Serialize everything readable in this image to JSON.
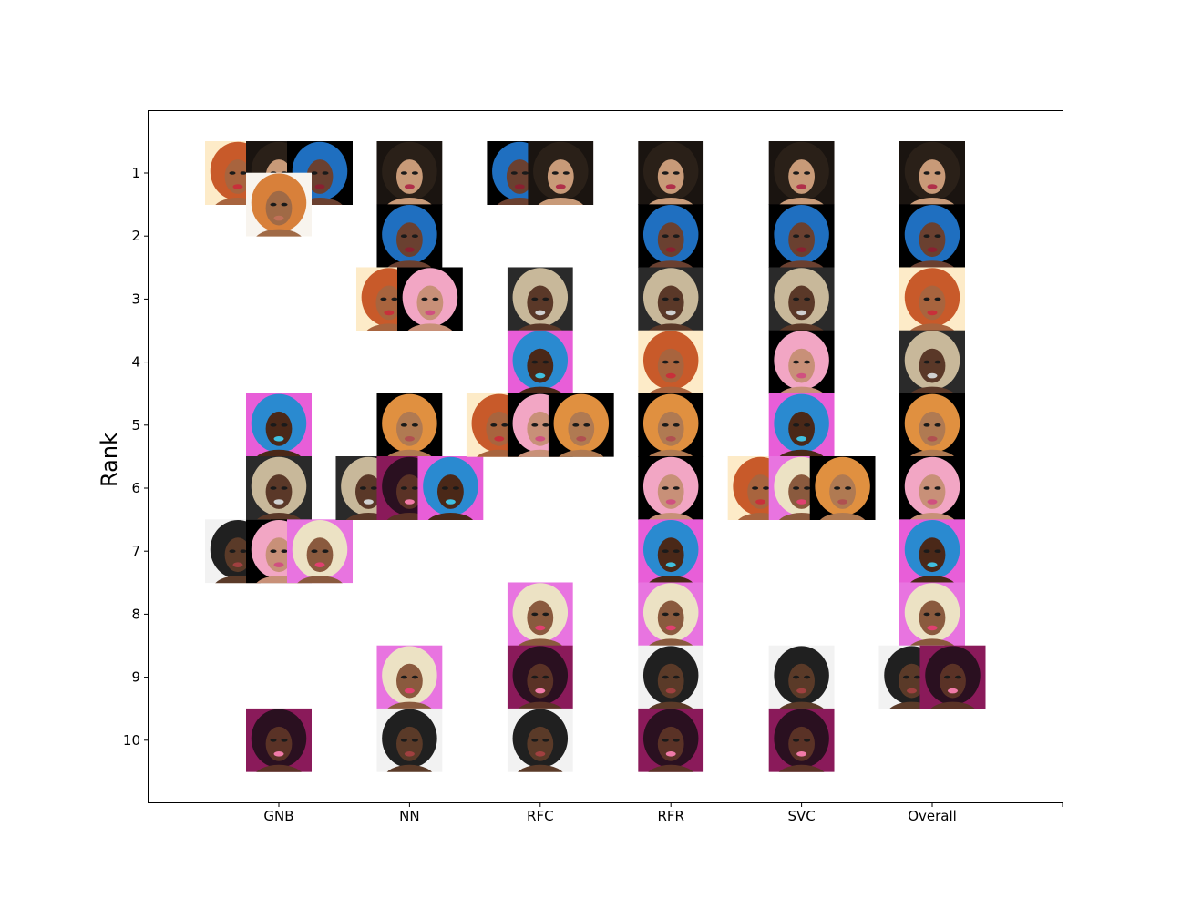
{
  "chart_data": {
    "type": "scatter",
    "marker": "portrait-thumbnails",
    "title": "",
    "xlabel": "",
    "ylabel": "Rank",
    "categories": [
      "GNB",
      "NN",
      "RFC",
      "RFR",
      "SVC",
      "Overall"
    ],
    "ylim": [
      11,
      0
    ],
    "y_ticks": [
      1,
      2,
      3,
      4,
      5,
      6,
      7,
      8,
      9,
      10
    ],
    "grid": false,
    "legend": "none",
    "portraits": {
      "A": {
        "bg": "#fdebc8",
        "hair": "#c85a2a",
        "skin": "#a8643e",
        "lip": "#c8303a"
      },
      "B": {
        "bg": "#1a1410",
        "hair": "#2a2018",
        "skin": "#c89a78",
        "lip": "#b0304a"
      },
      "C": {
        "bg": "#000000",
        "hair": "#1f6fc0",
        "skin": "#6a4030",
        "lip": "#8a2030"
      },
      "D": {
        "bg": "#f8f4ee",
        "hair": "#d8803a",
        "skin": "#a06a46",
        "lip": "#c07058"
      },
      "E": {
        "bg": "#000000",
        "hair": "#e09040",
        "skin": "#b07a52",
        "lip": "#b05050"
      },
      "F": {
        "bg": "#e85ed8",
        "hair": "#2a8ad0",
        "skin": "#4a2818",
        "lip": "#40c0e0"
      },
      "G": {
        "bg": "#2a2a2a",
        "hair": "#c8b89a",
        "skin": "#5a3828",
        "lip": "#d0d0d0"
      },
      "H": {
        "bg": "#000000",
        "hair": "#f2a6c4",
        "skin": "#c89078",
        "lip": "#d05080"
      },
      "I": {
        "bg": "#f2f2f2",
        "hair": "#202020",
        "skin": "#5a3a28",
        "lip": "#a04040"
      },
      "J": {
        "bg": "#e874e0",
        "hair": "#ece2c4",
        "skin": "#8a5a3e",
        "lip": "#e04070"
      },
      "K": {
        "bg": "#8a1a5a",
        "hair": "#2a1020",
        "skin": "#5a3226",
        "lip": "#f07aa8"
      }
    },
    "series": [
      {
        "column": "GNB",
        "points": [
          {
            "rank": 1,
            "p": "A"
          },
          {
            "rank": 1,
            "p": "B"
          },
          {
            "rank": 1,
            "p": "C"
          },
          {
            "rank": 1.5,
            "p": "D"
          },
          {
            "rank": 5,
            "p": "F"
          },
          {
            "rank": 6,
            "p": "G"
          },
          {
            "rank": 7,
            "p": "I"
          },
          {
            "rank": 7,
            "p": "H"
          },
          {
            "rank": 7,
            "p": "J"
          },
          {
            "rank": 10,
            "p": "K"
          }
        ]
      },
      {
        "column": "NN",
        "points": [
          {
            "rank": 1,
            "p": "B"
          },
          {
            "rank": 2,
            "p": "C"
          },
          {
            "rank": 3,
            "p": "A"
          },
          {
            "rank": 3,
            "p": "H"
          },
          {
            "rank": 5,
            "p": "E"
          },
          {
            "rank": 6,
            "p": "G"
          },
          {
            "rank": 6,
            "p": "K"
          },
          {
            "rank": 6,
            "p": "F"
          },
          {
            "rank": 9,
            "p": "J"
          },
          {
            "rank": 10,
            "p": "I"
          }
        ]
      },
      {
        "column": "RFC",
        "points": [
          {
            "rank": 1,
            "p": "C"
          },
          {
            "rank": 1,
            "p": "B"
          },
          {
            "rank": 3,
            "p": "G"
          },
          {
            "rank": 4,
            "p": "F"
          },
          {
            "rank": 5,
            "p": "A"
          },
          {
            "rank": 5,
            "p": "H"
          },
          {
            "rank": 5,
            "p": "E"
          },
          {
            "rank": 8,
            "p": "J"
          },
          {
            "rank": 9,
            "p": "K"
          },
          {
            "rank": 10,
            "p": "I"
          }
        ]
      },
      {
        "column": "RFR",
        "points": [
          {
            "rank": 1,
            "p": "B"
          },
          {
            "rank": 2,
            "p": "C"
          },
          {
            "rank": 3,
            "p": "G"
          },
          {
            "rank": 4,
            "p": "A"
          },
          {
            "rank": 5,
            "p": "E"
          },
          {
            "rank": 6,
            "p": "H"
          },
          {
            "rank": 7,
            "p": "F"
          },
          {
            "rank": 8,
            "p": "J"
          },
          {
            "rank": 9,
            "p": "I"
          },
          {
            "rank": 10,
            "p": "K"
          }
        ]
      },
      {
        "column": "SVC",
        "points": [
          {
            "rank": 1,
            "p": "B"
          },
          {
            "rank": 2,
            "p": "C"
          },
          {
            "rank": 3,
            "p": "G"
          },
          {
            "rank": 4,
            "p": "H"
          },
          {
            "rank": 5,
            "p": "F"
          },
          {
            "rank": 6,
            "p": "A"
          },
          {
            "rank": 6,
            "p": "J"
          },
          {
            "rank": 6,
            "p": "E"
          },
          {
            "rank": 9,
            "p": "I"
          },
          {
            "rank": 10,
            "p": "K"
          }
        ]
      },
      {
        "column": "Overall",
        "points": [
          {
            "rank": 1,
            "p": "B"
          },
          {
            "rank": 2,
            "p": "C"
          },
          {
            "rank": 3,
            "p": "A"
          },
          {
            "rank": 4,
            "p": "G"
          },
          {
            "rank": 5,
            "p": "E"
          },
          {
            "rank": 6,
            "p": "H"
          },
          {
            "rank": 7,
            "p": "F"
          },
          {
            "rank": 8,
            "p": "J"
          },
          {
            "rank": 9,
            "p": "I"
          },
          {
            "rank": 9,
            "p": "K"
          }
        ]
      }
    ]
  }
}
